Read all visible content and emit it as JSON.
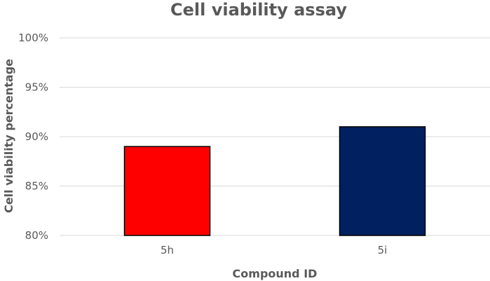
{
  "chart_data": {
    "type": "bar",
    "title": "Cell viability assay",
    "xlabel": "Compound ID",
    "ylabel": "Cell viability percentage",
    "categories": [
      "5h",
      "5i"
    ],
    "values": [
      89,
      91
    ],
    "colors": [
      "#ff0000",
      "#002060"
    ],
    "ylim": [
      80,
      100
    ],
    "yticks": [
      80,
      85,
      90,
      95,
      100
    ],
    "ytick_labels": [
      "80%",
      "85%",
      "90%",
      "95%",
      "100%"
    ],
    "grid": true,
    "legend": "none"
  }
}
